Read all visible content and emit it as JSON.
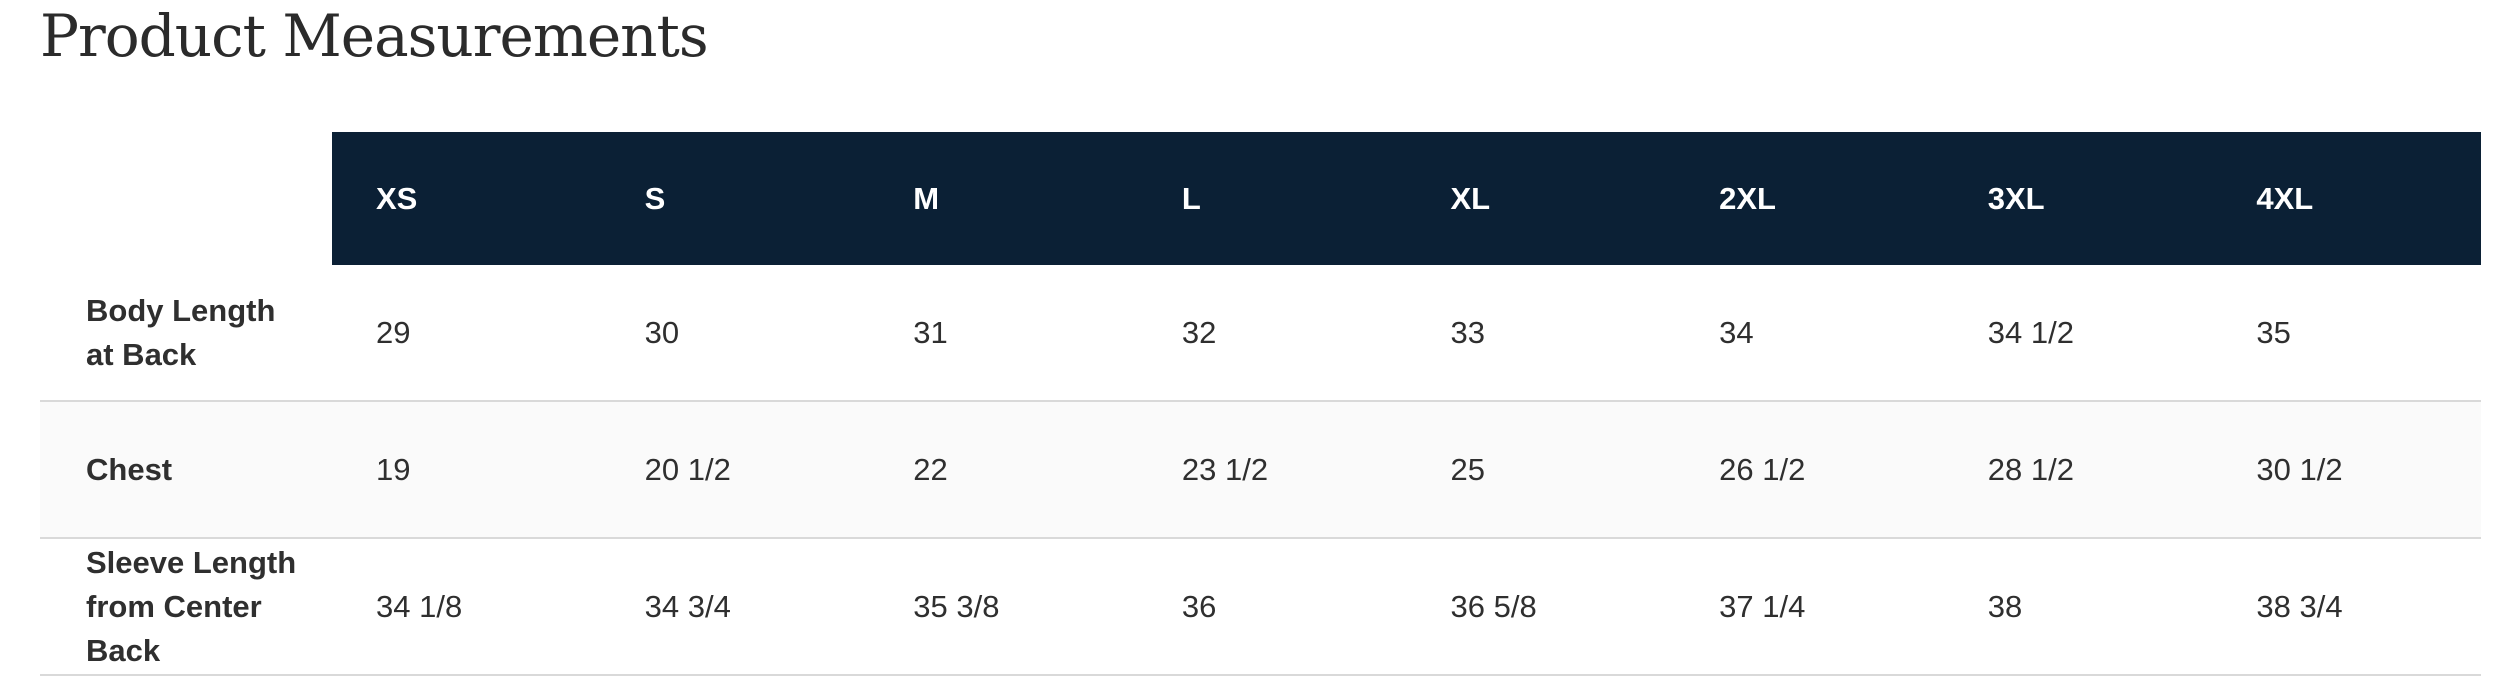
{
  "title": "Product Measurements",
  "table": {
    "columns": [
      "XS",
      "S",
      "M",
      "L",
      "XL",
      "2XL",
      "3XL",
      "4XL"
    ],
    "rows": [
      {
        "label": "Body Length at Back",
        "values": [
          "29",
          "30",
          "31",
          "32",
          "33",
          "34",
          "34 1/2",
          "35"
        ]
      },
      {
        "label": "Chest",
        "values": [
          "19",
          "20 1/2",
          "22",
          "23 1/2",
          "25",
          "26 1/2",
          "28 1/2",
          "30 1/2"
        ]
      },
      {
        "label": "Sleeve Length from Center Back",
        "values": [
          "34 1/8",
          "34 3/4",
          "35 3/8",
          "36",
          "36 5/8",
          "37 1/4",
          "38",
          "38 3/4"
        ]
      }
    ]
  }
}
